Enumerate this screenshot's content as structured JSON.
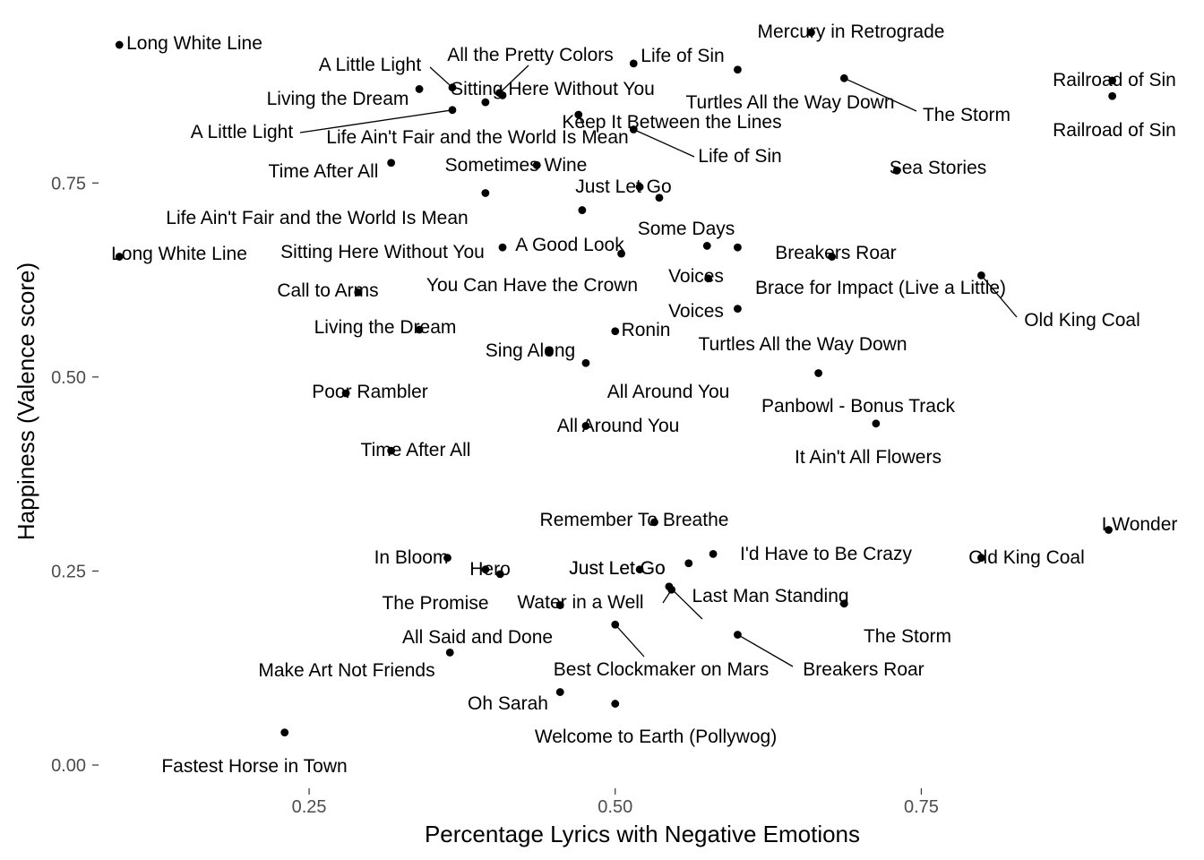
{
  "chart_data": {
    "type": "scatter",
    "xlabel": "Percentage Lyrics with Negative Emotions",
    "ylabel": "Happiness (Valence score)",
    "xlim": [
      0.078,
      0.967
    ],
    "ylim": [
      -0.03,
      0.98
    ],
    "xticks": [
      0.25,
      0.5,
      0.75
    ],
    "xtick_labels": [
      "0.25",
      "0.50",
      "0.75"
    ],
    "yticks": [
      0.0,
      0.25,
      0.5,
      0.75
    ],
    "ytick_labels": [
      "0.00",
      "0.25",
      "0.50",
      "0.75"
    ],
    "grid": false,
    "legend": "none",
    "points": [
      {
        "label": "Long White Line",
        "x": 0.095,
        "y": 0.928
      },
      {
        "label": "A Little Light",
        "x": 0.367,
        "y": 0.873
      },
      {
        "label": "All the Pretty Colors",
        "x": 0.4055,
        "y": 0.866
      },
      {
        "label": "Life of Sin",
        "x": 0.515,
        "y": 0.904
      },
      {
        "label": "Mercury in Retrograde",
        "x": 0.66,
        "y": 0.944
      },
      {
        "label": "Railroad of Sin",
        "x": 0.906,
        "y": 0.882
      },
      {
        "label": "Living the Dream",
        "x": 0.34,
        "y": 0.871
      },
      {
        "label": "Sitting Here Without You",
        "x": 0.408,
        "y": 0.863
      },
      {
        "label": "Turtles All the Way Down",
        "x": 0.6,
        "y": 0.896
      },
      {
        "label": "The Storm",
        "x": 0.687,
        "y": 0.885
      },
      {
        "label": "Railroad of Sin",
        "x": 0.906,
        "y": 0.862
      },
      {
        "label": "A Little Light",
        "x": 0.367,
        "y": 0.844
      },
      {
        "label": "Life Ain't Fair and the World Is Mean",
        "x": 0.394,
        "y": 0.854
      },
      {
        "label": "Keep It Between the Lines",
        "x": 0.47,
        "y": 0.838
      },
      {
        "label": "Life of Sin",
        "x": 0.515,
        "y": 0.819
      },
      {
        "label": "Time After All",
        "x": 0.317,
        "y": 0.776
      },
      {
        "label": "Sometimes Wine",
        "x": 0.436,
        "y": 0.773
      },
      {
        "label": "Sea Stories",
        "x": 0.73,
        "y": 0.766
      },
      {
        "label": "Just Let Go",
        "x": 0.52,
        "y": 0.745
      },
      {
        "label": "Some Days",
        "x": 0.536,
        "y": 0.731
      },
      {
        "label": "Life Ain't Fair and the World Is Mean",
        "x": 0.394,
        "y": 0.737
      },
      {
        "label": "A Good Look",
        "x": 0.473,
        "y": 0.715
      },
      {
        "label": "Sitting Here Without You",
        "x": 0.408,
        "y": 0.667
      },
      {
        "label": "You Can Have the Crown",
        "x": 0.505,
        "y": 0.659
      },
      {
        "label": "Long White Line",
        "x": 0.095,
        "y": 0.655
      },
      {
        "label": "Voices",
        "x": 0.575,
        "y": 0.669
      },
      {
        "label": "Breakers Roar",
        "x": 0.6,
        "y": 0.667
      },
      {
        "label": "Old King Coal",
        "x": 0.799,
        "y": 0.631
      },
      {
        "label": "Call to Arms",
        "x": 0.29,
        "y": 0.609
      },
      {
        "label": "Voices",
        "x": 0.576,
        "y": 0.627
      },
      {
        "label": "Brace for Impact (Live a Little)",
        "x": 0.677,
        "y": 0.655
      },
      {
        "label": "Living the Dream",
        "x": 0.34,
        "y": 0.561
      },
      {
        "label": "Turtles All the Way Down",
        "x": 0.6,
        "y": 0.588
      },
      {
        "label": "Ronin",
        "x": 0.5,
        "y": 0.559
      },
      {
        "label": "Sing Along",
        "x": 0.446,
        "y": 0.533
      },
      {
        "label": "All Around You",
        "x": 0.476,
        "y": 0.518
      },
      {
        "label": "Poor Rambler",
        "x": 0.28,
        "y": 0.479
      },
      {
        "label": "Panbowl - Bonus Track",
        "x": 0.666,
        "y": 0.505
      },
      {
        "label": "All Around You",
        "x": 0.476,
        "y": 0.437
      },
      {
        "label": "It Ain't All Flowers",
        "x": 0.713,
        "y": 0.44
      },
      {
        "label": "Time After All",
        "x": 0.317,
        "y": 0.405
      },
      {
        "label": "Remember To Breathe",
        "x": 0.532,
        "y": 0.313
      },
      {
        "label": "I Wonder",
        "x": 0.903,
        "y": 0.303
      },
      {
        "label": "I'd Have to Be Crazy",
        "x": 0.58,
        "y": 0.272
      },
      {
        "label": "In Bloom",
        "x": 0.363,
        "y": 0.267
      },
      {
        "label": "Old King Coal",
        "x": 0.799,
        "y": 0.267
      },
      {
        "label": "Just Let Go",
        "x": 0.56,
        "y": 0.26
      },
      {
        "label": "Hero",
        "x": 0.394,
        "y": 0.252
      },
      {
        "label": "Just Let Go",
        "x": 0.52,
        "y": 0.252
      },
      {
        "label": "The Promise",
        "x": 0.406,
        "y": 0.246
      },
      {
        "label": "Water in a Well",
        "x": 0.544,
        "y": 0.23
      },
      {
        "label": "Last Man Standing",
        "x": 0.546,
        "y": 0.226
      },
      {
        "label": "All Said and Done",
        "x": 0.455,
        "y": 0.206
      },
      {
        "label": "The Storm",
        "x": 0.687,
        "y": 0.208
      },
      {
        "label": "Best Clockmaker on Mars",
        "x": 0.5,
        "y": 0.181
      },
      {
        "label": "Breakers Roar",
        "x": 0.6,
        "y": 0.168
      },
      {
        "label": "Make Art Not Friends",
        "x": 0.365,
        "y": 0.145
      },
      {
        "label": "Oh Sarah",
        "x": 0.455,
        "y": 0.094
      },
      {
        "label": "Welcome to Earth (Pollywog)",
        "x": 0.5,
        "y": 0.079
      },
      {
        "label": "Fastest Horse in Town",
        "x": 0.23,
        "y": 0.042
      }
    ]
  }
}
